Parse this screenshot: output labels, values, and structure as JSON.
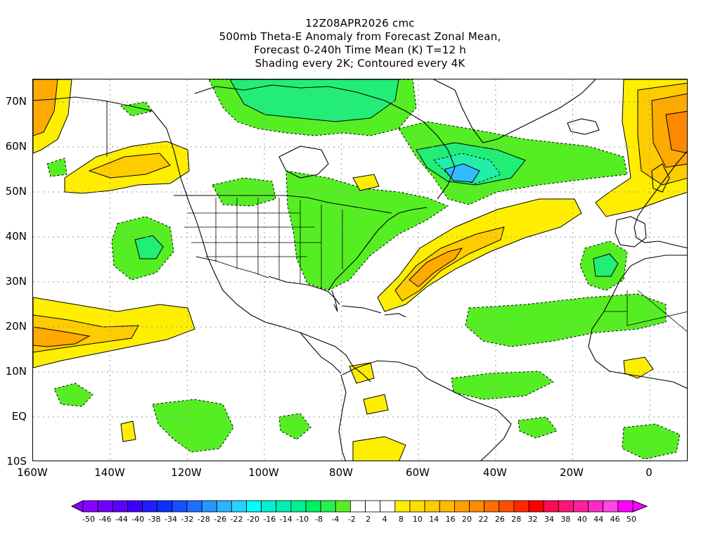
{
  "title": {
    "line1": "12Z08APR2026 cmc",
    "line2": "500mb Theta-E Anomaly from Forecast Zonal Mean,",
    "line3": "Forecast 0-240h Time Mean (K) T=12 h",
    "line4": "Shading every 2K; Contoured every 4K"
  },
  "map": {
    "lat_labels": [
      "70N",
      "60N",
      "50N",
      "40N",
      "30N",
      "20N",
      "10N",
      "EQ",
      "10S"
    ],
    "lon_labels": [
      "160W",
      "140W",
      "120W",
      "100W",
      "80W",
      "60W",
      "40W",
      "20W",
      "0"
    ],
    "extent": {
      "lon_min": -160,
      "lon_max": 10,
      "lat_min": -10,
      "lat_max": 75
    },
    "colors": {
      "land_line": "#000000",
      "grid": "#9a9a9a",
      "neg_light": "#55ee22",
      "neg_mid": "#22ee77",
      "neg_strong": "#22eeaa",
      "neg_stronger": "#22dddd",
      "neg_core": "#33bbff",
      "pos_light": "#ffee00",
      "pos_mid": "#ffcc00",
      "pos_strong": "#ffaa00",
      "pos_stronger": "#ff8800"
    }
  },
  "colorbar": {
    "labels": [
      "-50",
      "-46",
      "-44",
      "-40",
      "-38",
      "-34",
      "-32",
      "-28",
      "-26",
      "-22",
      "-20",
      "-16",
      "-14",
      "-10",
      "-8",
      "-4",
      "-2",
      "2",
      "4",
      "8",
      "10",
      "14",
      "16",
      "20",
      "22",
      "26",
      "28",
      "32",
      "34",
      "38",
      "40",
      "44",
      "46",
      "50"
    ],
    "colors": [
      "#8800ff",
      "#7000ff",
      "#5a00ff",
      "#3c00ff",
      "#1e1eff",
      "#0a32ff",
      "#1450ff",
      "#1e6eff",
      "#2896ff",
      "#28b4ff",
      "#28d2ff",
      "#00ffff",
      "#00f0d2",
      "#00f0b4",
      "#00f096",
      "#00f064",
      "#28f050",
      "#55ee22",
      "#ffffff",
      "#ffffff",
      "#ffffff",
      "#ffee00",
      "#ffdd00",
      "#ffcc00",
      "#ffbb00",
      "#ffa000",
      "#ff8c00",
      "#ff6e00",
      "#ff5000",
      "#ff2800",
      "#ff0000",
      "#ff0a50",
      "#ff1478",
      "#ff1e9b",
      "#ff28c8",
      "#ff46e6",
      "#ff00ff"
    ]
  }
}
